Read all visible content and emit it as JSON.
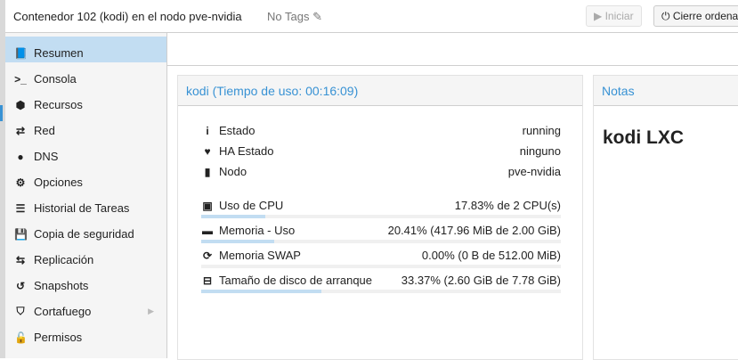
{
  "header": {
    "title": "Contenedor 102 (kodi) en el nodo pve-nvidia",
    "tags": "No Tags",
    "start_label": "Iniciar",
    "shutdown_label": "Cierre ordena"
  },
  "sidebar": {
    "items": [
      {
        "label": "Resumen",
        "icon": "book-icon",
        "active": true
      },
      {
        "label": "Consola",
        "icon": "terminal-icon"
      },
      {
        "label": "Recursos",
        "icon": "cube-icon"
      },
      {
        "label": "Red",
        "icon": "exchange-icon"
      },
      {
        "label": "DNS",
        "icon": "globe-icon"
      },
      {
        "label": "Opciones",
        "icon": "gear-icon"
      },
      {
        "label": "Historial de Tareas",
        "icon": "list-icon"
      },
      {
        "label": "Copia de seguridad",
        "icon": "floppy-icon"
      },
      {
        "label": "Replicación",
        "icon": "retweet-icon"
      },
      {
        "label": "Snapshots",
        "icon": "history-icon"
      },
      {
        "label": "Cortafuego",
        "icon": "shield-icon",
        "expandable": true
      },
      {
        "label": "Permisos",
        "icon": "unlock-icon"
      }
    ]
  },
  "status": {
    "title": "kodi (Tiempo de uso: 00:16:09)",
    "info": [
      {
        "label": "Estado",
        "value": "running",
        "icon": "info-icon"
      },
      {
        "label": "HA Estado",
        "value": "ninguno",
        "icon": "heartbeat-icon"
      },
      {
        "label": "Nodo",
        "value": "pve-nvidia",
        "icon": "server-icon"
      }
    ],
    "usage": [
      {
        "label": "Uso de CPU",
        "value": "17.83% de 2 CPU(s)",
        "percent": 17.83,
        "icon": "cpu-icon"
      },
      {
        "label": "Memoria - Uso",
        "value": "20.41% (417.96 MiB de 2.00 GiB)",
        "percent": 20.41,
        "icon": "memory-icon"
      },
      {
        "label": "Memoria SWAP",
        "value": "0.00% (0 B de 512.00 MiB)",
        "percent": 0,
        "icon": "refresh-icon"
      },
      {
        "label": "Tamaño de disco de arranque",
        "value": "33.37% (2.60 GiB de 7.78 GiB)",
        "percent": 33.37,
        "icon": "hdd-icon"
      }
    ]
  },
  "notes": {
    "title": "Notas",
    "content": "kodi LXC"
  },
  "colors": {
    "accent": "#3892d4",
    "selected": "#c2ddf2"
  }
}
